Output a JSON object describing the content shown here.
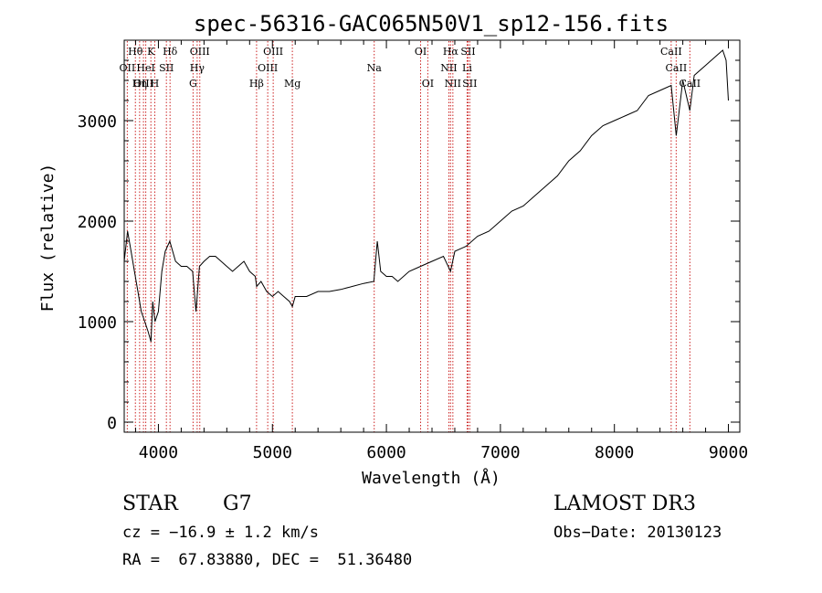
{
  "chart_data": {
    "type": "line",
    "title": "spec-56316-GAC065N50V1_sp12-156.fits",
    "xlabel": "Wavelength (Å)",
    "ylabel": "Flux (relative)",
    "xlim": [
      3700,
      9100
    ],
    "ylim": [
      -100,
      3800
    ],
    "x_ticks": [
      4000,
      5000,
      6000,
      7000,
      8000,
      9000
    ],
    "x_tick_labels": [
      "4000",
      "5000",
      "6000",
      "7000",
      "8000",
      "9000"
    ],
    "y_ticks": [
      0,
      1000,
      2000,
      3000
    ],
    "y_tick_labels": [
      "0",
      "1000",
      "2000",
      "3000"
    ],
    "series": [
      {
        "name": "spectrum",
        "x": [
          3700,
          3730,
          3760,
          3790,
          3820,
          3850,
          3880,
          3910,
          3935,
          3950,
          3970,
          4000,
          4030,
          4060,
          4100,
          4150,
          4200,
          4250,
          4300,
          4330,
          4360,
          4400,
          4450,
          4500,
          4550,
          4600,
          4650,
          4700,
          4750,
          4800,
          4850,
          4862,
          4900,
          4950,
          5000,
          5050,
          5100,
          5150,
          5175,
          5200,
          5300,
          5400,
          5500,
          5600,
          5700,
          5800,
          5890,
          5920,
          5950,
          6000,
          6050,
          6100,
          6200,
          6300,
          6400,
          6500,
          6563,
          6600,
          6700,
          6800,
          6900,
          7000,
          7100,
          7200,
          7300,
          7400,
          7500,
          7600,
          7700,
          7800,
          7900,
          8000,
          8100,
          8200,
          8300,
          8400,
          8498,
          8542,
          8600,
          8662,
          8700,
          8800,
          8900,
          8950,
          8980,
          9000
        ],
        "y": [
          1600,
          1900,
          1700,
          1500,
          1300,
          1100,
          1000,
          900,
          800,
          1200,
          1000,
          1100,
          1500,
          1700,
          1800,
          1600,
          1550,
          1550,
          1500,
          1100,
          1550,
          1600,
          1650,
          1650,
          1600,
          1550,
          1500,
          1550,
          1600,
          1500,
          1450,
          1350,
          1400,
          1300,
          1250,
          1300,
          1250,
          1200,
          1150,
          1250,
          1250,
          1300,
          1300,
          1320,
          1350,
          1380,
          1400,
          1800,
          1500,
          1450,
          1450,
          1400,
          1500,
          1550,
          1600,
          1650,
          1500,
          1700,
          1750,
          1850,
          1900,
          2000,
          2100,
          2150,
          2250,
          2350,
          2450,
          2600,
          2700,
          2850,
          2950,
          3000,
          3050,
          3100,
          3250,
          3300,
          3350,
          2850,
          3400,
          3100,
          3450,
          3550,
          3650,
          3700,
          3600,
          3200
        ]
      }
    ],
    "lines": [
      {
        "label": "Hθ",
        "x": 3798,
        "row": 1
      },
      {
        "label": "OII",
        "x": 3727,
        "row": 2
      },
      {
        "label": "Hη",
        "x": 3835,
        "row": 3
      },
      {
        "label": "OIII",
        "x": 3869,
        "row": 3
      },
      {
        "label": "HeI",
        "x": 3889,
        "row": 2
      },
      {
        "label": "K",
        "x": 3934,
        "row": 1
      },
      {
        "label": "SII",
        "x": 4070,
        "row": 2
      },
      {
        "label": "H",
        "x": 3968,
        "row": 3
      },
      {
        "label": "Hδ",
        "x": 4102,
        "row": 1
      },
      {
        "label": "OIII",
        "x": 4363,
        "row": 1
      },
      {
        "label": "Hγ",
        "x": 4340,
        "row": 2
      },
      {
        "label": "G",
        "x": 4304,
        "row": 3
      },
      {
        "label": "Hβ",
        "x": 4861,
        "row": 3
      },
      {
        "label": "OIII",
        "x": 5007,
        "row": 1
      },
      {
        "label": "OIII",
        "x": 4959,
        "row": 2
      },
      {
        "label": "Mg",
        "x": 5175,
        "row": 3
      },
      {
        "label": "Na",
        "x": 5893,
        "row": 2
      },
      {
        "label": "OI",
        "x": 6300,
        "row": 1
      },
      {
        "label": "OI",
        "x": 6363,
        "row": 3
      },
      {
        "label": "Hα",
        "x": 6563,
        "row": 1
      },
      {
        "label": "NII",
        "x": 6548,
        "row": 2
      },
      {
        "label": "NII",
        "x": 6583,
        "row": 3
      },
      {
        "label": "SII",
        "x": 6716,
        "row": 1
      },
      {
        "label": "Li",
        "x": 6708,
        "row": 2
      },
      {
        "label": "SII",
        "x": 6731,
        "row": 3
      },
      {
        "label": "CaII",
        "x": 8498,
        "row": 1
      },
      {
        "label": "CaII",
        "x": 8542,
        "row": 2
      },
      {
        "label": "CaII",
        "x": 8662,
        "row": 3
      }
    ],
    "line_color": "#000000",
    "marker_color": "#cc2222"
  },
  "info": {
    "object_class": "STAR",
    "subclass": "G7",
    "survey": "LAMOST DR3",
    "cz": "cz = −16.9 ± 1.2 km/s",
    "obs_date": "Obs−Date: 20130123",
    "coords": "RA =  67.83880, DEC =  51.36480"
  }
}
